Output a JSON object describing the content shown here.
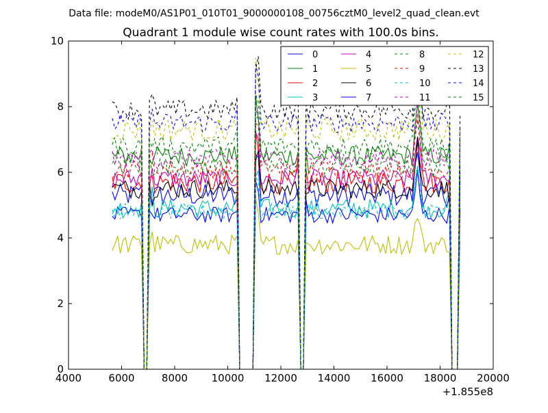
{
  "figure": {
    "suptitle": "Data file: modeM0/AS1P01_010T01_9000000108_00756cztM0_level2_quad_clean.evt"
  },
  "chart_data": {
    "type": "line",
    "title": "Quadrant 1 module wise count rates with 100.0s bins.",
    "xlabel": "",
    "ylabel": "",
    "x_offset_label": "+1.855e8",
    "xlim": [
      4000,
      20000
    ],
    "ylim": [
      0,
      10
    ],
    "xticks": [
      4000,
      6000,
      8000,
      10000,
      12000,
      14000,
      16000,
      18000,
      20000
    ],
    "yticks": [
      0,
      2,
      4,
      6,
      8,
      10
    ],
    "grid": false,
    "legend": {
      "position": "top-right",
      "columns": 4
    },
    "gaps": [
      [
        6800,
        7050
      ],
      [
        10350,
        11000
      ],
      [
        12650,
        12900
      ],
      [
        18350,
        18700
      ]
    ],
    "spikes": [
      11100,
      17150
    ],
    "x_range": [
      5650,
      18750
    ],
    "series": [
      {
        "name": "0",
        "color": "#0000ff",
        "dash": "solid",
        "baseline": 5.3,
        "noise": 0.35
      },
      {
        "name": "1",
        "color": "#008000",
        "dash": "solid",
        "baseline": 6.5,
        "noise": 0.3
      },
      {
        "name": "2",
        "color": "#ff0000",
        "dash": "solid",
        "baseline": 5.7,
        "noise": 0.35
      },
      {
        "name": "3",
        "color": "#00bfbf",
        "dash": "solid",
        "baseline": 4.9,
        "noise": 0.3
      },
      {
        "name": "4",
        "color": "#bf00bf",
        "dash": "solid",
        "baseline": 5.8,
        "noise": 0.3
      },
      {
        "name": "5",
        "color": "#bfbf00",
        "dash": "solid",
        "baseline": 3.8,
        "noise": 0.3
      },
      {
        "name": "6",
        "color": "#000000",
        "dash": "solid",
        "baseline": 5.5,
        "noise": 0.3
      },
      {
        "name": "7",
        "color": "#0000ff",
        "dash": "solid",
        "baseline": 4.7,
        "noise": 0.25
      },
      {
        "name": "8",
        "color": "#008000",
        "dash": "dashed",
        "baseline": 6.2,
        "noise": 0.3
      },
      {
        "name": "9",
        "color": "#ff0000",
        "dash": "dashed",
        "baseline": 6.1,
        "noise": 0.3
      },
      {
        "name": "10",
        "color": "#00bfbf",
        "dash": "dashed",
        "baseline": 4.8,
        "noise": 0.25
      },
      {
        "name": "11",
        "color": "#bf00bf",
        "dash": "dashed",
        "baseline": 6.4,
        "noise": 0.3
      },
      {
        "name": "12",
        "color": "#bfbf00",
        "dash": "dashed",
        "baseline": 7.3,
        "noise": 0.35
      },
      {
        "name": "13",
        "color": "#000000",
        "dash": "dashed",
        "baseline": 7.9,
        "noise": 0.3
      },
      {
        "name": "14",
        "color": "#0000ff",
        "dash": "dashed",
        "baseline": 7.5,
        "noise": 0.3
      },
      {
        "name": "15",
        "color": "#008000",
        "dash": "dashed",
        "baseline": 6.8,
        "noise": 0.3
      }
    ]
  }
}
